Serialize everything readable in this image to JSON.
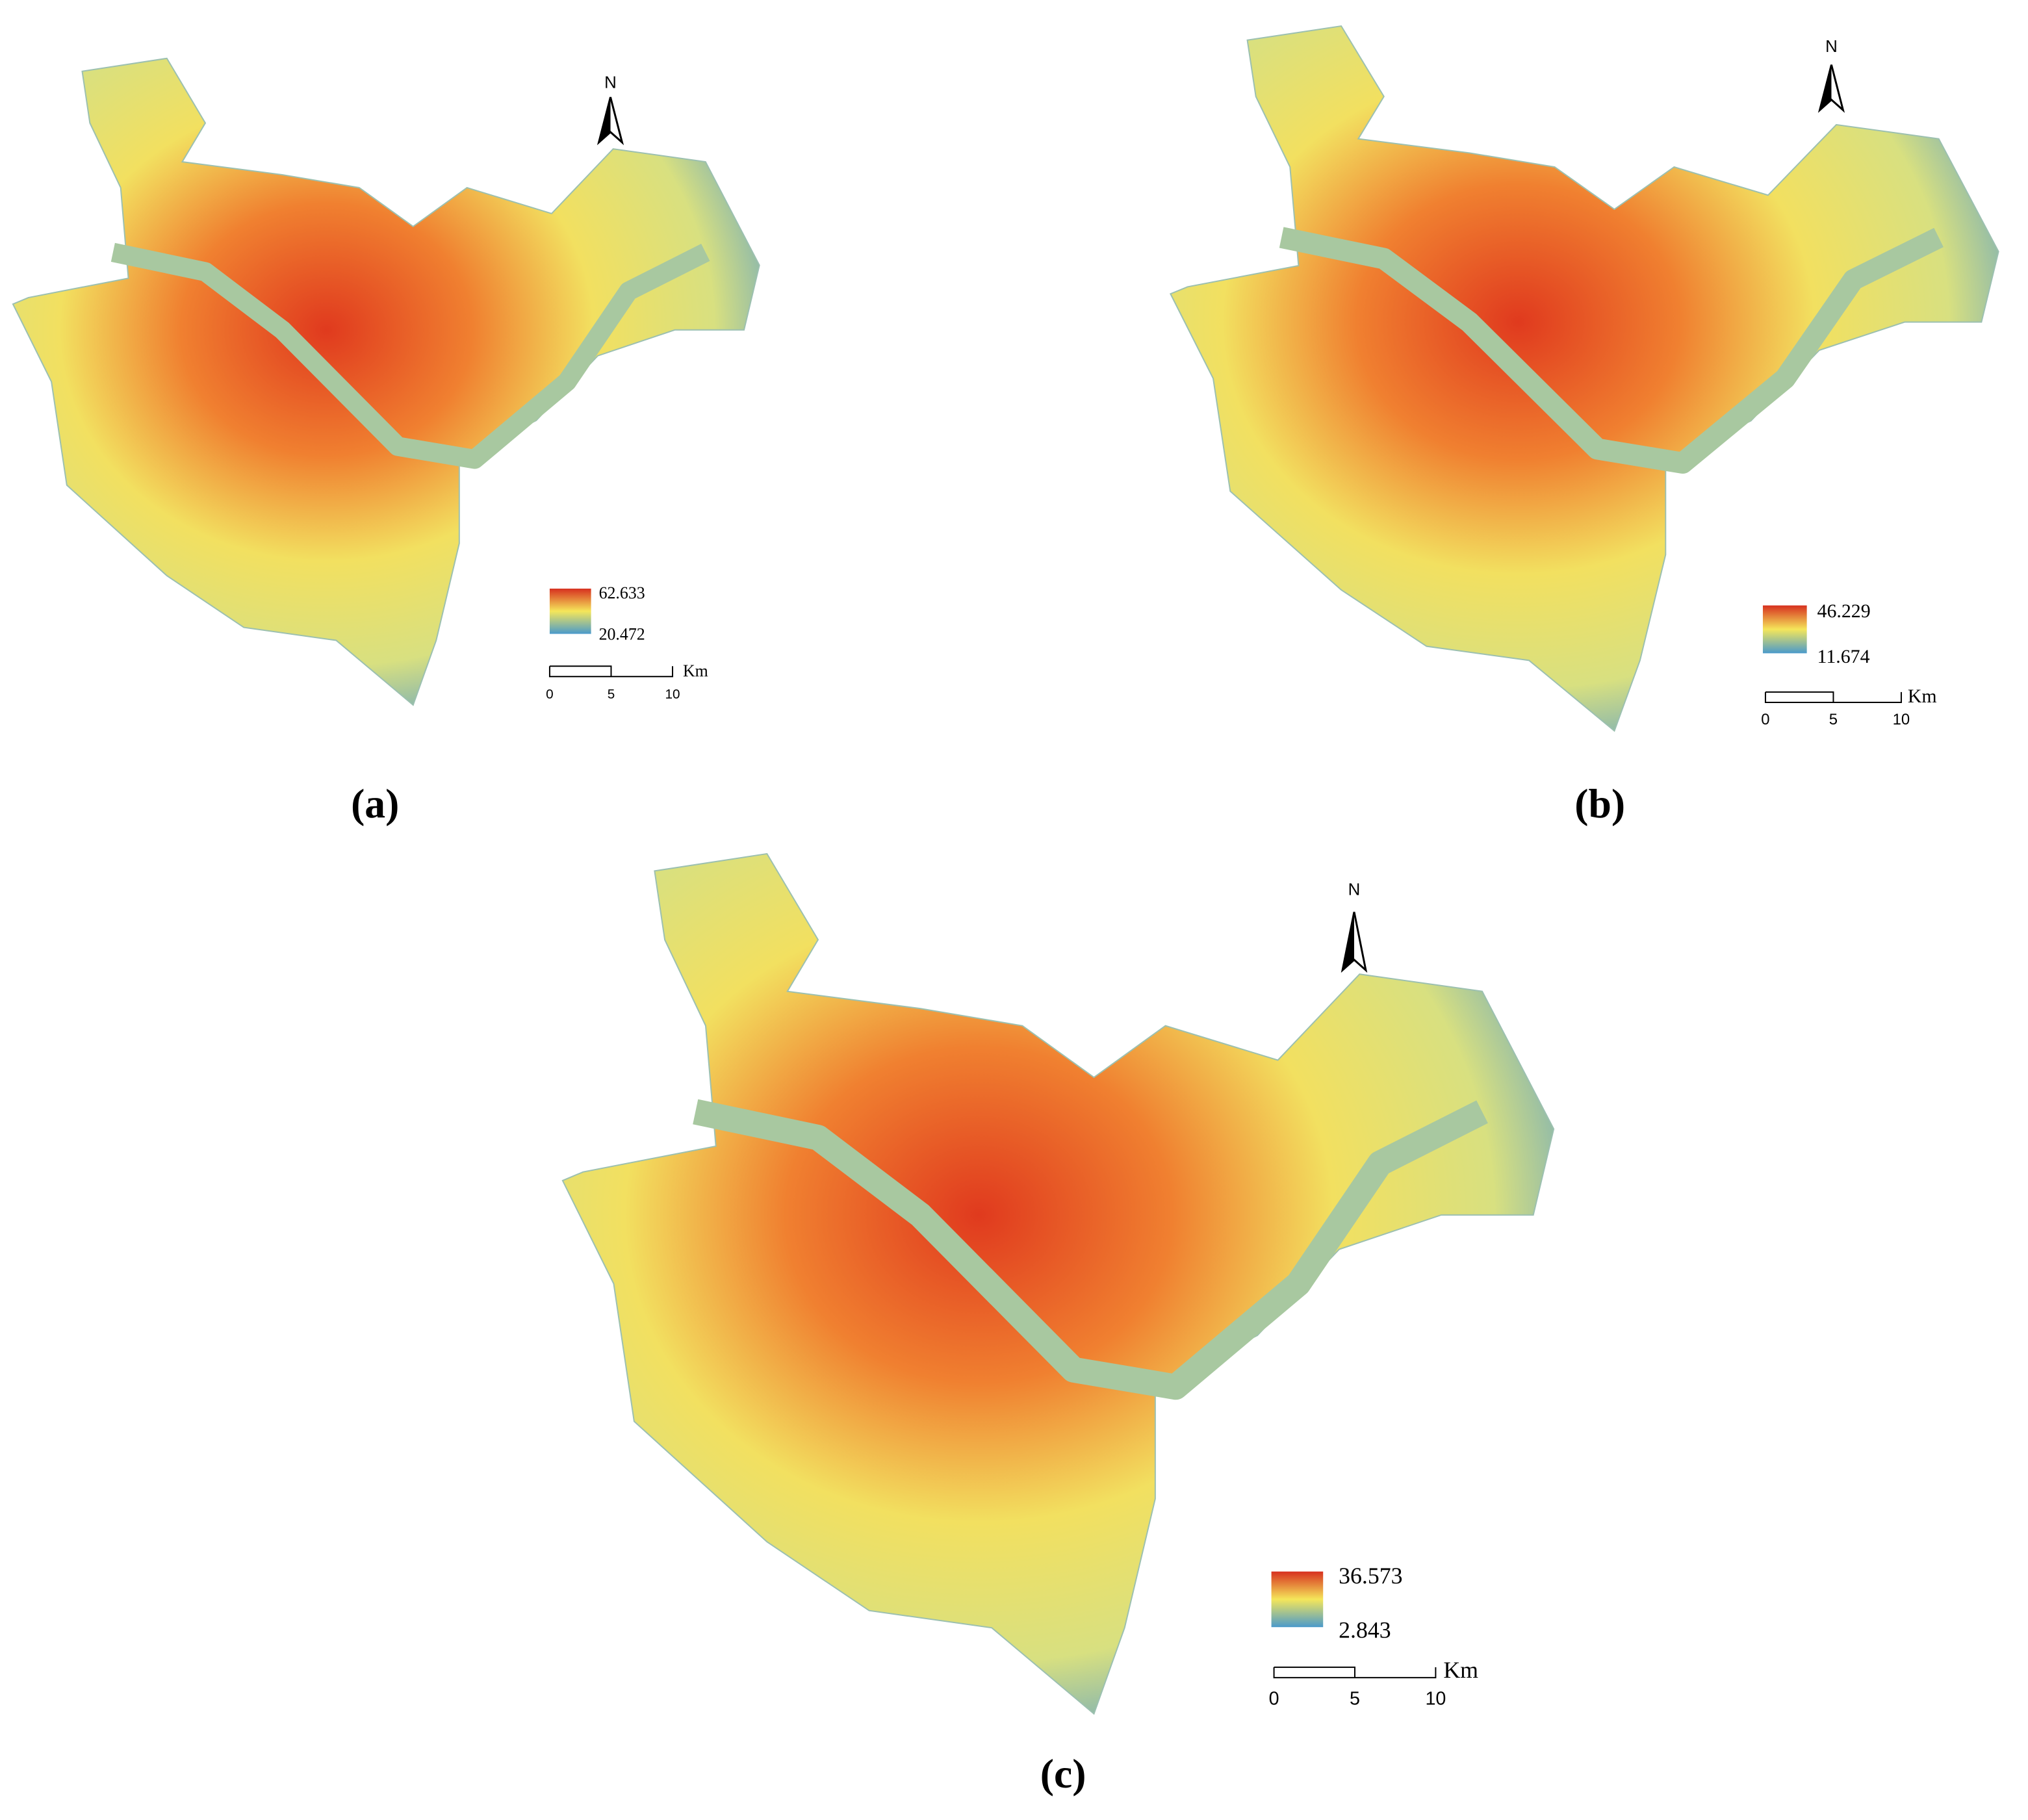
{
  "panels": [
    {
      "label": "(a)",
      "north": "N",
      "legend": {
        "max": 62.633,
        "min": 20.472
      },
      "scale": {
        "ticks": [
          0,
          5,
          10
        ],
        "unit": "Km"
      }
    },
    {
      "label": "(b)",
      "north": "N",
      "legend": {
        "max": 46.229,
        "min": 11.674
      },
      "scale": {
        "ticks": [
          0,
          5,
          10
        ],
        "unit": "Km"
      }
    },
    {
      "label": "(c)",
      "north": "N",
      "legend": {
        "max": 36.573,
        "min": 2.843
      },
      "scale": {
        "ticks": [
          0,
          5,
          10
        ],
        "unit": "Km"
      }
    }
  ]
}
